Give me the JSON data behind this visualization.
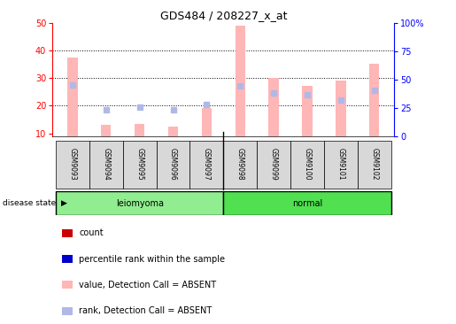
{
  "title": "GDS484 / 208227_x_at",
  "samples": [
    "GSM9093",
    "GSM9094",
    "GSM9095",
    "GSM9096",
    "GSM9097",
    "GSM9098",
    "GSM9099",
    "GSM9100",
    "GSM9101",
    "GSM9102"
  ],
  "value_absent": [
    37.5,
    13.0,
    13.5,
    12.5,
    19.0,
    49.0,
    30.0,
    27.0,
    29.0,
    35.0
  ],
  "rank_absent": [
    27.5,
    18.5,
    19.5,
    18.5,
    20.5,
    27.0,
    24.5,
    24.0,
    22.0,
    25.5
  ],
  "ylim_left": [
    9,
    50
  ],
  "yticks_left": [
    10,
    20,
    30,
    40,
    50
  ],
  "yticks_right": [
    0,
    25,
    50,
    75,
    100
  ],
  "ytick_labels_right": [
    "0",
    "25",
    "50",
    "75",
    "100%"
  ],
  "color_value_absent": "#ffb6b6",
  "color_rank_absent": "#b0b8e8",
  "legend_items": [
    {
      "label": "count",
      "color": "#cc0000"
    },
    {
      "label": "percentile rank within the sample",
      "color": "#0000cc"
    },
    {
      "label": "value, Detection Call = ABSENT",
      "color": "#ffb6b6"
    },
    {
      "label": "rank, Detection Call = ABSENT",
      "color": "#b0b8e8"
    }
  ]
}
